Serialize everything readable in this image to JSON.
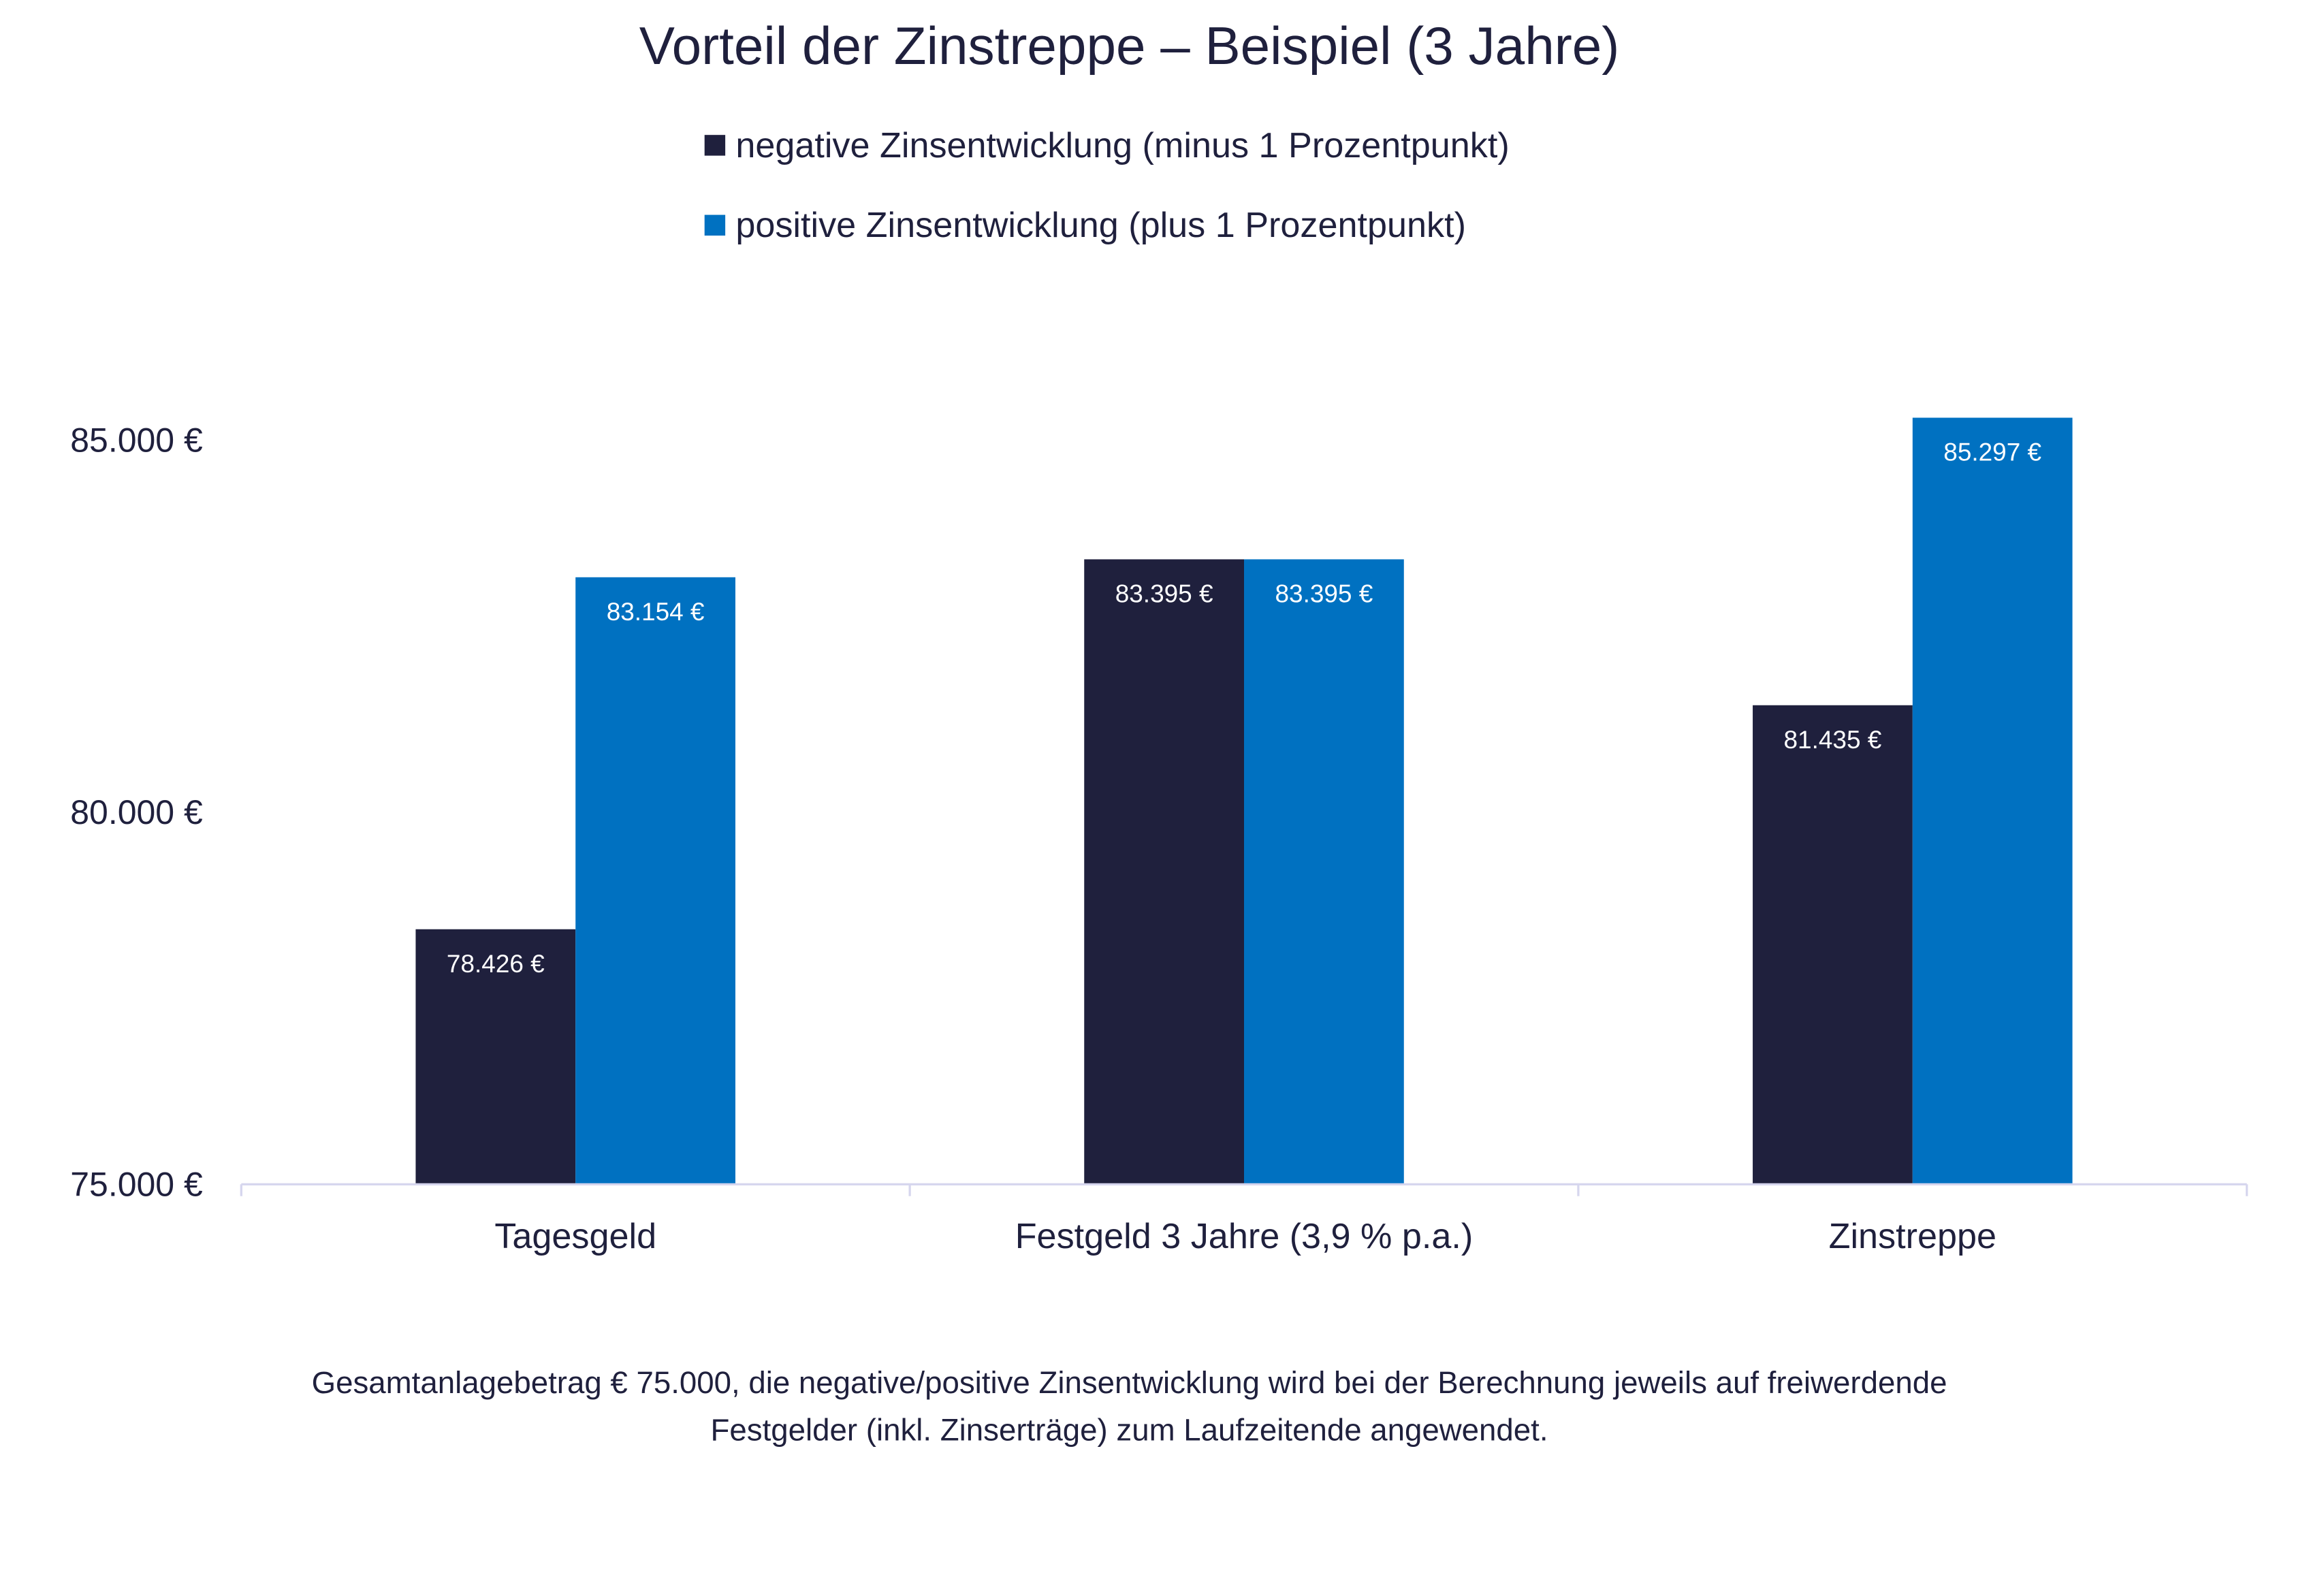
{
  "chart_data": {
    "type": "bar",
    "title": "Vorteil der Zinstreppe – Beispiel (3 Jahre)",
    "categories": [
      "Tagesgeld",
      "Festgeld 3 Jahre (3,9 % p.a.)",
      "Zinstreppe"
    ],
    "series": [
      {
        "name": "negative Zinsentwicklung (minus 1 Prozentpunkt)",
        "color": "#1f203d",
        "values": [
          78426,
          83395,
          81435
        ],
        "labels": [
          "78.426 €",
          "83.395 €",
          "81.435 €"
        ]
      },
      {
        "name": "positive Zinsentwicklung (plus 1 Prozentpunkt)",
        "color": "#0071c1",
        "values": [
          83154,
          83395,
          85297
        ],
        "labels": [
          "83.154 €",
          "83.395 €",
          "85.297 €"
        ]
      }
    ],
    "ylim": [
      75000,
      85000
    ],
    "yticks": [
      75000,
      80000,
      85000
    ],
    "ytick_labels": [
      "75.000 €",
      "80.000 €",
      "85.000 €"
    ],
    "legend_position": "top",
    "grid": false,
    "xlabel": "",
    "ylabel": ""
  },
  "footnote": {
    "line1": "Gesamtanlagebetrag € 75.000, die negative/positive Zinsentwicklung wird bei der Berechnung jeweils auf freiwerdende",
    "line2": "Festgelder (inkl. Zinserträge) zum Laufzeitende angewendet."
  }
}
